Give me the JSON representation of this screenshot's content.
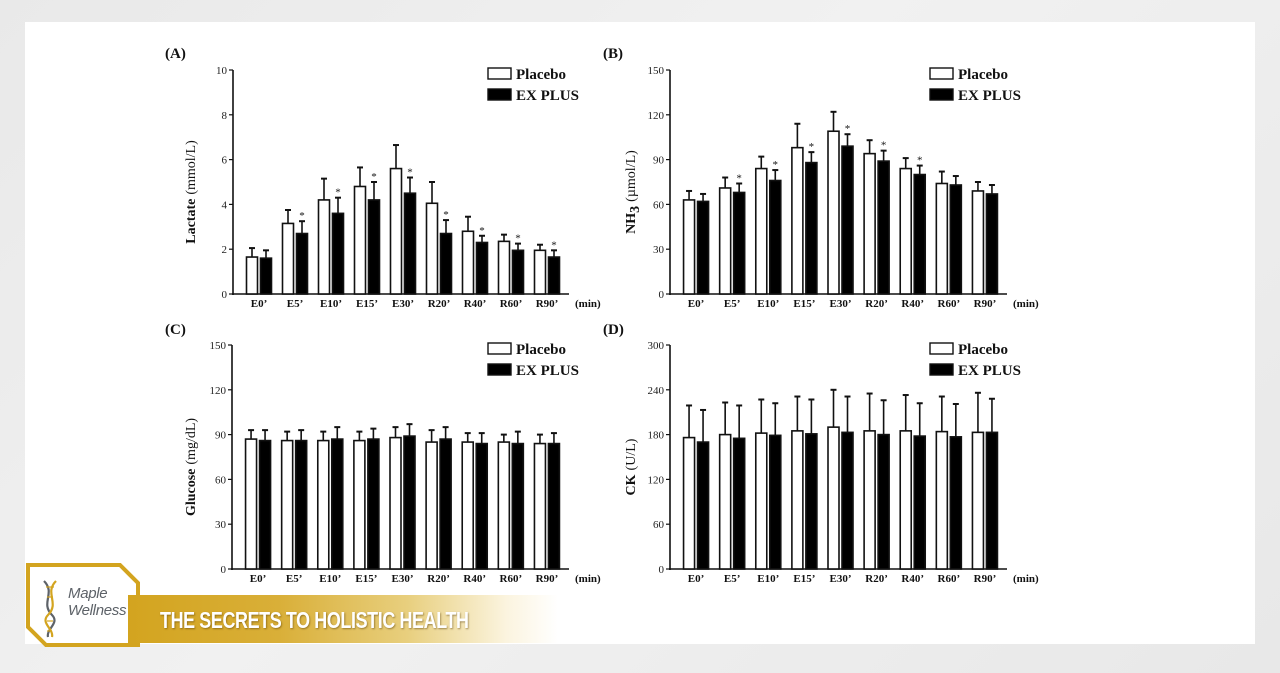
{
  "brand": {
    "name_line1": "Maple",
    "name_line2": "Wellness",
    "tagline": "THE SECRETS TO HOLISTIC HEALTH",
    "logo_icon": "dna-helix-icon",
    "gold": "#d3a41f",
    "grey": "#5d6268"
  },
  "colors": {
    "placebo_fill": "#ffffff",
    "explus_fill": "#000000",
    "stroke": "#111111"
  },
  "chart_data": [
    {
      "type": "bar",
      "panel": "(A)",
      "ylabel_main": "Lactate",
      "ylabel_unit": "(mmol/L)",
      "xunit": "(min)",
      "ylim": [
        0,
        10
      ],
      "yticks": [
        0,
        2,
        4,
        6,
        8,
        10
      ],
      "categories": [
        "E0’",
        "E5’",
        "E10’",
        "E15’",
        "E30’",
        "R20’",
        "R40’",
        "R60’",
        "R90’"
      ],
      "legend": "top-right",
      "series": [
        {
          "name": "Placebo",
          "values": [
            1.65,
            3.15,
            4.2,
            4.8,
            5.6,
            4.05,
            2.8,
            2.35,
            1.95
          ],
          "error_top": [
            2.05,
            3.75,
            5.15,
            5.65,
            6.65,
            5.0,
            3.45,
            2.65,
            2.2
          ],
          "significant": [
            false,
            false,
            false,
            false,
            false,
            false,
            false,
            false,
            false
          ]
        },
        {
          "name": "EX PLUS",
          "values": [
            1.6,
            2.7,
            3.6,
            4.2,
            4.5,
            2.7,
            2.3,
            1.95,
            1.65
          ],
          "error_top": [
            1.95,
            3.25,
            4.3,
            5.0,
            5.2,
            3.3,
            2.6,
            2.25,
            1.95
          ],
          "significant": [
            false,
            true,
            true,
            true,
            true,
            true,
            true,
            true,
            true
          ]
        }
      ],
      "significance_marker": "*"
    },
    {
      "type": "bar",
      "panel": "(B)",
      "ylabel_main": "NH",
      "ylabel_sub": "3",
      "ylabel_unit": "(µmol/L)",
      "xunit": "(min)",
      "ylim": [
        0,
        150
      ],
      "yticks": [
        0,
        30,
        60,
        90,
        120,
        150
      ],
      "categories": [
        "E0’",
        "E5’",
        "E10’",
        "E15’",
        "E30’",
        "R20’",
        "R40’",
        "R60’",
        "R90’"
      ],
      "legend": "top-right",
      "series": [
        {
          "name": "Placebo",
          "values": [
            63,
            71,
            84,
            98,
            109,
            94,
            84,
            74,
            69
          ],
          "error_top": [
            69,
            78,
            92,
            114,
            122,
            103,
            91,
            82,
            75
          ],
          "significant": [
            false,
            false,
            false,
            false,
            false,
            false,
            false,
            false,
            false
          ]
        },
        {
          "name": "EX PLUS",
          "values": [
            62,
            68,
            76,
            88,
            99,
            89,
            80,
            73,
            67
          ],
          "error_top": [
            67,
            74,
            83,
            95,
            107,
            96,
            86,
            79,
            73
          ],
          "significant": [
            false,
            true,
            true,
            true,
            true,
            true,
            true,
            false,
            false
          ]
        }
      ],
      "significance_marker": "*"
    },
    {
      "type": "bar",
      "panel": "(C)",
      "ylabel_main": "Glucose",
      "ylabel_unit": "(mg/dL)",
      "xunit": "(min)",
      "ylim": [
        0,
        150
      ],
      "yticks": [
        0,
        30,
        60,
        90,
        120,
        150
      ],
      "categories": [
        "E0’",
        "E5’",
        "E10’",
        "E15’",
        "E30’",
        "R20’",
        "R40’",
        "R60’",
        "R90’"
      ],
      "legend": "top-right",
      "series": [
        {
          "name": "Placebo",
          "values": [
            87,
            86,
            86,
            86,
            88,
            85,
            85,
            85,
            84
          ],
          "error_top": [
            93,
            92,
            92,
            92,
            95,
            93,
            91,
            90,
            90
          ],
          "significant": [
            false,
            false,
            false,
            false,
            false,
            false,
            false,
            false,
            false
          ]
        },
        {
          "name": "EX PLUS",
          "values": [
            86,
            86,
            87,
            87,
            89,
            87,
            84,
            84,
            84
          ],
          "error_top": [
            93,
            93,
            95,
            94,
            97,
            95,
            91,
            92,
            91
          ],
          "significant": [
            false,
            false,
            false,
            false,
            false,
            false,
            false,
            false,
            false
          ]
        }
      ],
      "significance_marker": "*"
    },
    {
      "type": "bar",
      "panel": "(D)",
      "ylabel_main": "CK",
      "ylabel_unit": "(U/L)",
      "xunit": "(min)",
      "ylim": [
        0,
        300
      ],
      "yticks": [
        0,
        60,
        120,
        180,
        240,
        300
      ],
      "categories": [
        "E0’",
        "E5’",
        "E10’",
        "E15’",
        "E30’",
        "R20’",
        "R40’",
        "R60’",
        "R90’"
      ],
      "legend": "top-right",
      "series": [
        {
          "name": "Placebo",
          "values": [
            176,
            180,
            182,
            185,
            190,
            185,
            185,
            184,
            183
          ],
          "error_top": [
            219,
            223,
            227,
            231,
            240,
            235,
            233,
            231,
            236
          ],
          "significant": [
            false,
            false,
            false,
            false,
            false,
            false,
            false,
            false,
            false
          ]
        },
        {
          "name": "EX PLUS",
          "values": [
            170,
            175,
            179,
            181,
            183,
            180,
            178,
            177,
            183
          ],
          "error_top": [
            213,
            219,
            222,
            227,
            231,
            226,
            222,
            221,
            228
          ],
          "significant": [
            false,
            false,
            false,
            false,
            false,
            false,
            false,
            false,
            false
          ]
        }
      ],
      "significance_marker": "*"
    }
  ]
}
